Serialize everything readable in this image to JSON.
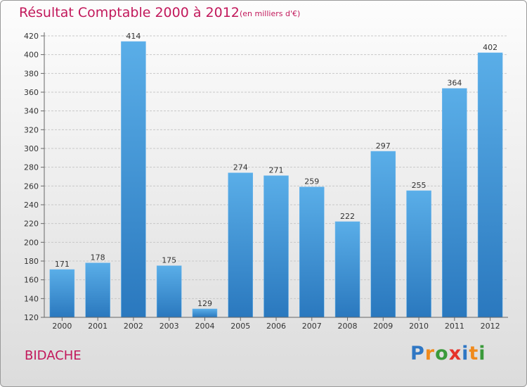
{
  "chart_data": {
    "type": "bar",
    "title": "Résultat Comptable 2000 à 2012",
    "subtitle": "(en milliers d'€)",
    "categories": [
      "2000",
      "2001",
      "2002",
      "2003",
      "2004",
      "2005",
      "2006",
      "2007",
      "2008",
      "2009",
      "2010",
      "2011",
      "2012"
    ],
    "values": [
      171,
      178,
      414,
      175,
      129,
      274,
      271,
      259,
      222,
      297,
      255,
      364,
      402
    ],
    "ylim": [
      120,
      420
    ],
    "yticks": [
      120,
      140,
      160,
      180,
      200,
      220,
      240,
      260,
      280,
      300,
      320,
      340,
      360,
      380,
      400,
      420
    ],
    "grid": true,
    "bar_color": "#3d8fd4",
    "xlabel": "",
    "ylabel": ""
  },
  "commune": "BIDACHE",
  "logo": {
    "text": "Proxiti",
    "letter_colors": [
      "#2f77c4",
      "#f08a1c",
      "#3a9a3a",
      "#e6332a",
      "#2f77c4",
      "#f08a1c",
      "#3a9a3a"
    ]
  },
  "colors": {
    "title": "#c2185b",
    "axis": "#666666",
    "grid": "#c8c8c8"
  }
}
